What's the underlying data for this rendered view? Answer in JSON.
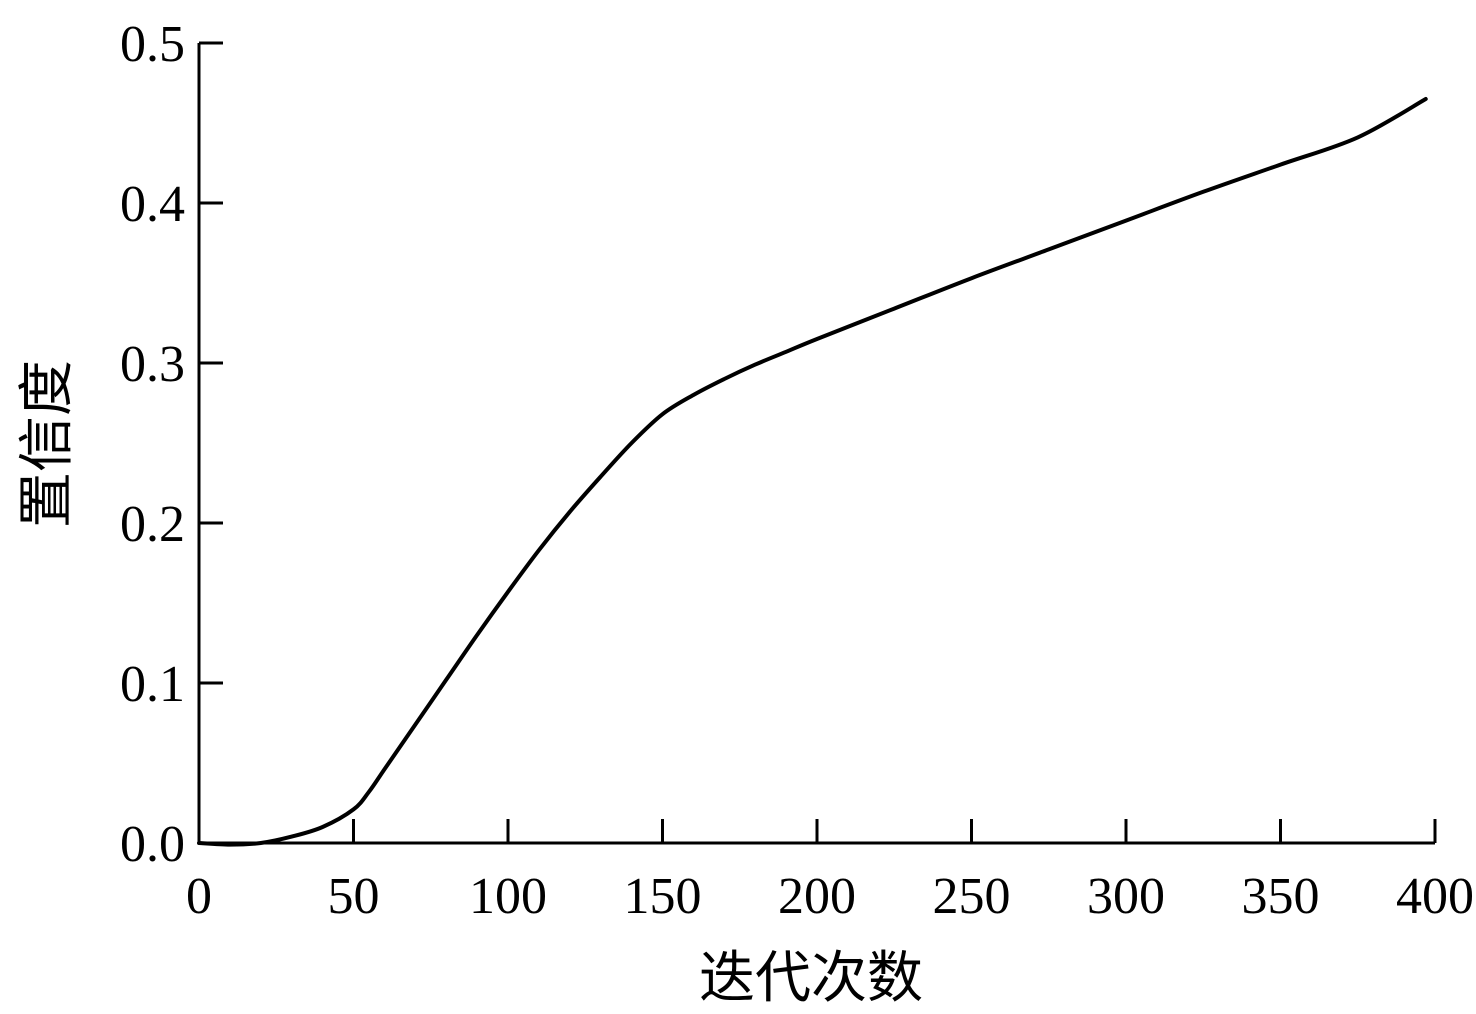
{
  "chart_data": {
    "type": "line",
    "title": "",
    "xlabel": "迭代次数",
    "ylabel": "置信度",
    "xlim": [
      0,
      400
    ],
    "ylim": [
      0,
      0.5
    ],
    "x_ticks": [
      0,
      50,
      100,
      150,
      200,
      250,
      300,
      350,
      400
    ],
    "x_tick_labels": [
      "0",
      "50",
      "100",
      "150",
      "200",
      "250",
      "300",
      "350",
      "400"
    ],
    "y_ticks": [
      0.0,
      0.1,
      0.2,
      0.3,
      0.4,
      0.5
    ],
    "y_tick_labels": [
      "0.0",
      "0.1",
      "0.2",
      "0.3",
      "0.4",
      "0.5"
    ],
    "grid": false,
    "legend": "none",
    "line_color": "#000000",
    "series": [
      {
        "x": [
          0,
          10,
          20,
          30,
          40,
          50,
          55,
          60,
          70,
          80,
          90,
          100,
          110,
          120,
          130,
          140,
          150,
          160,
          170,
          180,
          190,
          200,
          225,
          250,
          275,
          300,
          325,
          350,
          375,
          397
        ],
        "y": [
          0.0,
          -0.001,
          0.0,
          0.004,
          0.01,
          0.021,
          0.032,
          0.046,
          0.074,
          0.102,
          0.13,
          0.157,
          0.183,
          0.207,
          0.229,
          0.25,
          0.268,
          0.28,
          0.29,
          0.299,
          0.307,
          0.315,
          0.334,
          0.353,
          0.371,
          0.389,
          0.407,
          0.424,
          0.441,
          0.465
        ]
      }
    ]
  }
}
